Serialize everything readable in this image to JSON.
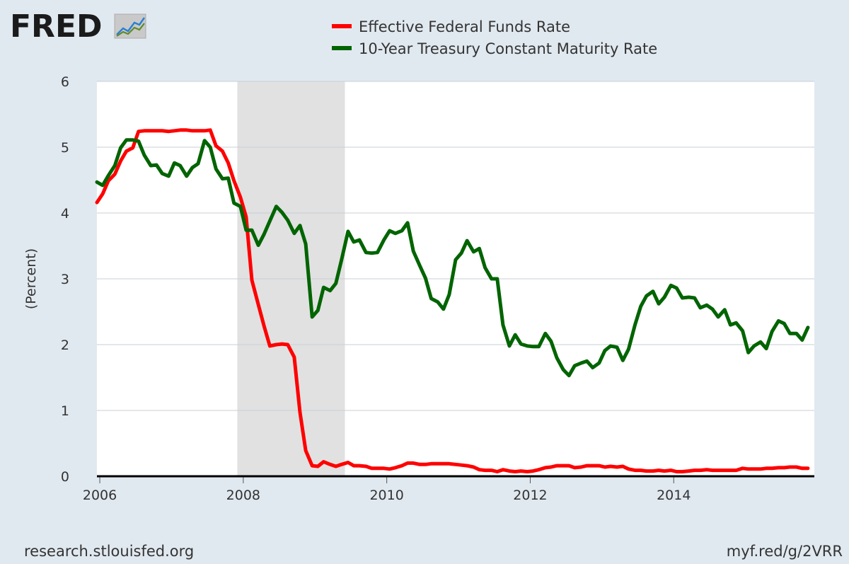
{
  "brand": {
    "logo_text": "FRED",
    "logo_mark_color": "#b7b7b7"
  },
  "colors": {
    "background": "#e1e9f0",
    "plot_background": "#ffffff",
    "grid": "#c8cfd6",
    "recession": "#e1e1e1",
    "axis": "#000000"
  },
  "footer": {
    "source": "research.stlouisfed.org",
    "short_link": "myf.red/g/2VRR"
  },
  "chart_data": {
    "type": "line",
    "title": "",
    "xlabel": "",
    "ylabel": "(Percent)",
    "xlim": [
      2005.96,
      2015.96
    ],
    "ylim": [
      0,
      6
    ],
    "y_ticks": [
      0,
      1,
      2,
      3,
      4,
      5,
      6
    ],
    "x_ticks": [
      2006,
      2008,
      2010,
      2012,
      2014
    ],
    "x_tick_labels": [
      "2006",
      "2008",
      "2010",
      "2012",
      "2014"
    ],
    "grid": true,
    "legend_position": "top-center",
    "recessions": [
      {
        "start": 2007.917,
        "end": 2009.417
      }
    ],
    "series": [
      {
        "name": "Effective Federal Funds Rate",
        "color": "#ff0000",
        "x": [
          2005.96,
          2006.04,
          2006.12,
          2006.21,
          2006.29,
          2006.37,
          2006.46,
          2006.54,
          2006.62,
          2006.71,
          2006.79,
          2006.87,
          2006.96,
          2007.04,
          2007.12,
          2007.21,
          2007.29,
          2007.37,
          2007.46,
          2007.54,
          2007.62,
          2007.71,
          2007.79,
          2007.87,
          2007.96,
          2008.04,
          2008.12,
          2008.21,
          2008.29,
          2008.37,
          2008.46,
          2008.54,
          2008.62,
          2008.71,
          2008.79,
          2008.87,
          2008.96,
          2009.04,
          2009.12,
          2009.21,
          2009.29,
          2009.37,
          2009.46,
          2009.54,
          2009.62,
          2009.71,
          2009.79,
          2009.87,
          2009.96,
          2010.04,
          2010.12,
          2010.21,
          2010.29,
          2010.37,
          2010.46,
          2010.54,
          2010.62,
          2010.71,
          2010.79,
          2010.87,
          2010.96,
          2011.04,
          2011.12,
          2011.21,
          2011.29,
          2011.37,
          2011.46,
          2011.54,
          2011.62,
          2011.71,
          2011.79,
          2011.87,
          2011.96,
          2012.04,
          2012.12,
          2012.21,
          2012.29,
          2012.37,
          2012.46,
          2012.54,
          2012.62,
          2012.71,
          2012.79,
          2012.87,
          2012.96,
          2013.04,
          2013.12,
          2013.21,
          2013.29,
          2013.37,
          2013.46,
          2013.54,
          2013.62,
          2013.71,
          2013.79,
          2013.87,
          2013.96,
          2014.04,
          2014.12,
          2014.21,
          2014.29,
          2014.37,
          2014.46,
          2014.54,
          2014.62,
          2014.71,
          2014.79,
          2014.87,
          2014.96,
          2015.04,
          2015.12,
          2015.21,
          2015.29,
          2015.37,
          2015.46,
          2015.54,
          2015.62,
          2015.71,
          2015.79,
          2015.87
        ],
        "values": [
          4.16,
          4.29,
          4.49,
          4.59,
          4.79,
          4.94,
          4.99,
          5.24,
          5.25,
          5.25,
          5.25,
          5.25,
          5.24,
          5.25,
          5.26,
          5.26,
          5.25,
          5.25,
          5.25,
          5.26,
          5.02,
          4.94,
          4.76,
          4.49,
          4.24,
          3.94,
          2.98,
          2.61,
          2.28,
          1.98,
          2.0,
          2.01,
          2.0,
          1.81,
          0.97,
          0.39,
          0.16,
          0.15,
          0.22,
          0.18,
          0.15,
          0.18,
          0.21,
          0.16,
          0.16,
          0.15,
          0.12,
          0.12,
          0.12,
          0.11,
          0.13,
          0.16,
          0.2,
          0.2,
          0.18,
          0.18,
          0.19,
          0.19,
          0.19,
          0.19,
          0.18,
          0.17,
          0.16,
          0.14,
          0.1,
          0.09,
          0.09,
          0.07,
          0.1,
          0.08,
          0.07,
          0.08,
          0.07,
          0.08,
          0.1,
          0.13,
          0.14,
          0.16,
          0.16,
          0.16,
          0.13,
          0.14,
          0.16,
          0.16,
          0.16,
          0.14,
          0.15,
          0.14,
          0.15,
          0.11,
          0.09,
          0.09,
          0.08,
          0.08,
          0.09,
          0.08,
          0.09,
          0.07,
          0.07,
          0.08,
          0.09,
          0.09,
          0.1,
          0.09,
          0.09,
          0.09,
          0.09,
          0.09,
          0.12,
          0.11,
          0.11,
          0.11,
          0.12,
          0.12,
          0.13,
          0.13,
          0.14,
          0.14,
          0.12,
          0.12
        ]
      },
      {
        "name": "10-Year Treasury Constant Maturity Rate",
        "color": "#006400",
        "x": [
          2005.96,
          2006.04,
          2006.12,
          2006.21,
          2006.29,
          2006.37,
          2006.46,
          2006.54,
          2006.62,
          2006.71,
          2006.79,
          2006.87,
          2006.96,
          2007.04,
          2007.12,
          2007.21,
          2007.29,
          2007.37,
          2007.46,
          2007.54,
          2007.62,
          2007.71,
          2007.79,
          2007.87,
          2007.96,
          2008.04,
          2008.12,
          2008.21,
          2008.29,
          2008.37,
          2008.46,
          2008.54,
          2008.62,
          2008.71,
          2008.79,
          2008.87,
          2008.96,
          2009.04,
          2009.12,
          2009.21,
          2009.29,
          2009.37,
          2009.46,
          2009.54,
          2009.62,
          2009.71,
          2009.79,
          2009.87,
          2009.96,
          2010.04,
          2010.12,
          2010.21,
          2010.29,
          2010.37,
          2010.46,
          2010.54,
          2010.62,
          2010.71,
          2010.79,
          2010.87,
          2010.96,
          2011.04,
          2011.12,
          2011.21,
          2011.29,
          2011.37,
          2011.46,
          2011.54,
          2011.62,
          2011.71,
          2011.79,
          2011.87,
          2011.96,
          2012.04,
          2012.12,
          2012.21,
          2012.29,
          2012.37,
          2012.46,
          2012.54,
          2012.62,
          2012.71,
          2012.79,
          2012.87,
          2012.96,
          2013.04,
          2013.12,
          2013.21,
          2013.29,
          2013.37,
          2013.46,
          2013.54,
          2013.62,
          2013.71,
          2013.79,
          2013.87,
          2013.96,
          2014.04,
          2014.12,
          2014.21,
          2014.29,
          2014.37,
          2014.46,
          2014.54,
          2014.62,
          2014.71,
          2014.79,
          2014.87,
          2014.96,
          2015.04,
          2015.12,
          2015.21,
          2015.29,
          2015.37,
          2015.46,
          2015.54,
          2015.62,
          2015.71,
          2015.79,
          2015.87
        ],
        "values": [
          4.47,
          4.42,
          4.57,
          4.72,
          4.99,
          5.11,
          5.11,
          5.09,
          4.88,
          4.72,
          4.73,
          4.6,
          4.56,
          4.76,
          4.72,
          4.56,
          4.69,
          4.75,
          5.1,
          5.0,
          4.67,
          4.52,
          4.53,
          4.15,
          4.1,
          3.74,
          3.74,
          3.51,
          3.68,
          3.88,
          4.1,
          4.01,
          3.89,
          3.69,
          3.81,
          3.53,
          2.42,
          2.52,
          2.87,
          2.82,
          2.93,
          3.29,
          3.72,
          3.56,
          3.59,
          3.4,
          3.39,
          3.4,
          3.59,
          3.73,
          3.69,
          3.73,
          3.85,
          3.42,
          3.2,
          3.01,
          2.7,
          2.65,
          2.54,
          2.76,
          3.29,
          3.39,
          3.58,
          3.41,
          3.46,
          3.17,
          3.0,
          3.0,
          2.3,
          1.98,
          2.15,
          2.01,
          1.98,
          1.97,
          1.97,
          2.17,
          2.05,
          1.8,
          1.62,
          1.53,
          1.68,
          1.72,
          1.75,
          1.65,
          1.72,
          1.91,
          1.98,
          1.96,
          1.76,
          1.93,
          2.3,
          2.58,
          2.74,
          2.81,
          2.62,
          2.72,
          2.9,
          2.86,
          2.71,
          2.72,
          2.71,
          2.56,
          2.6,
          2.54,
          2.42,
          2.53,
          2.3,
          2.33,
          2.21,
          1.88,
          1.98,
          2.04,
          1.94,
          2.2,
          2.36,
          2.32,
          2.17,
          2.17,
          2.07,
          2.26
        ]
      }
    ]
  }
}
